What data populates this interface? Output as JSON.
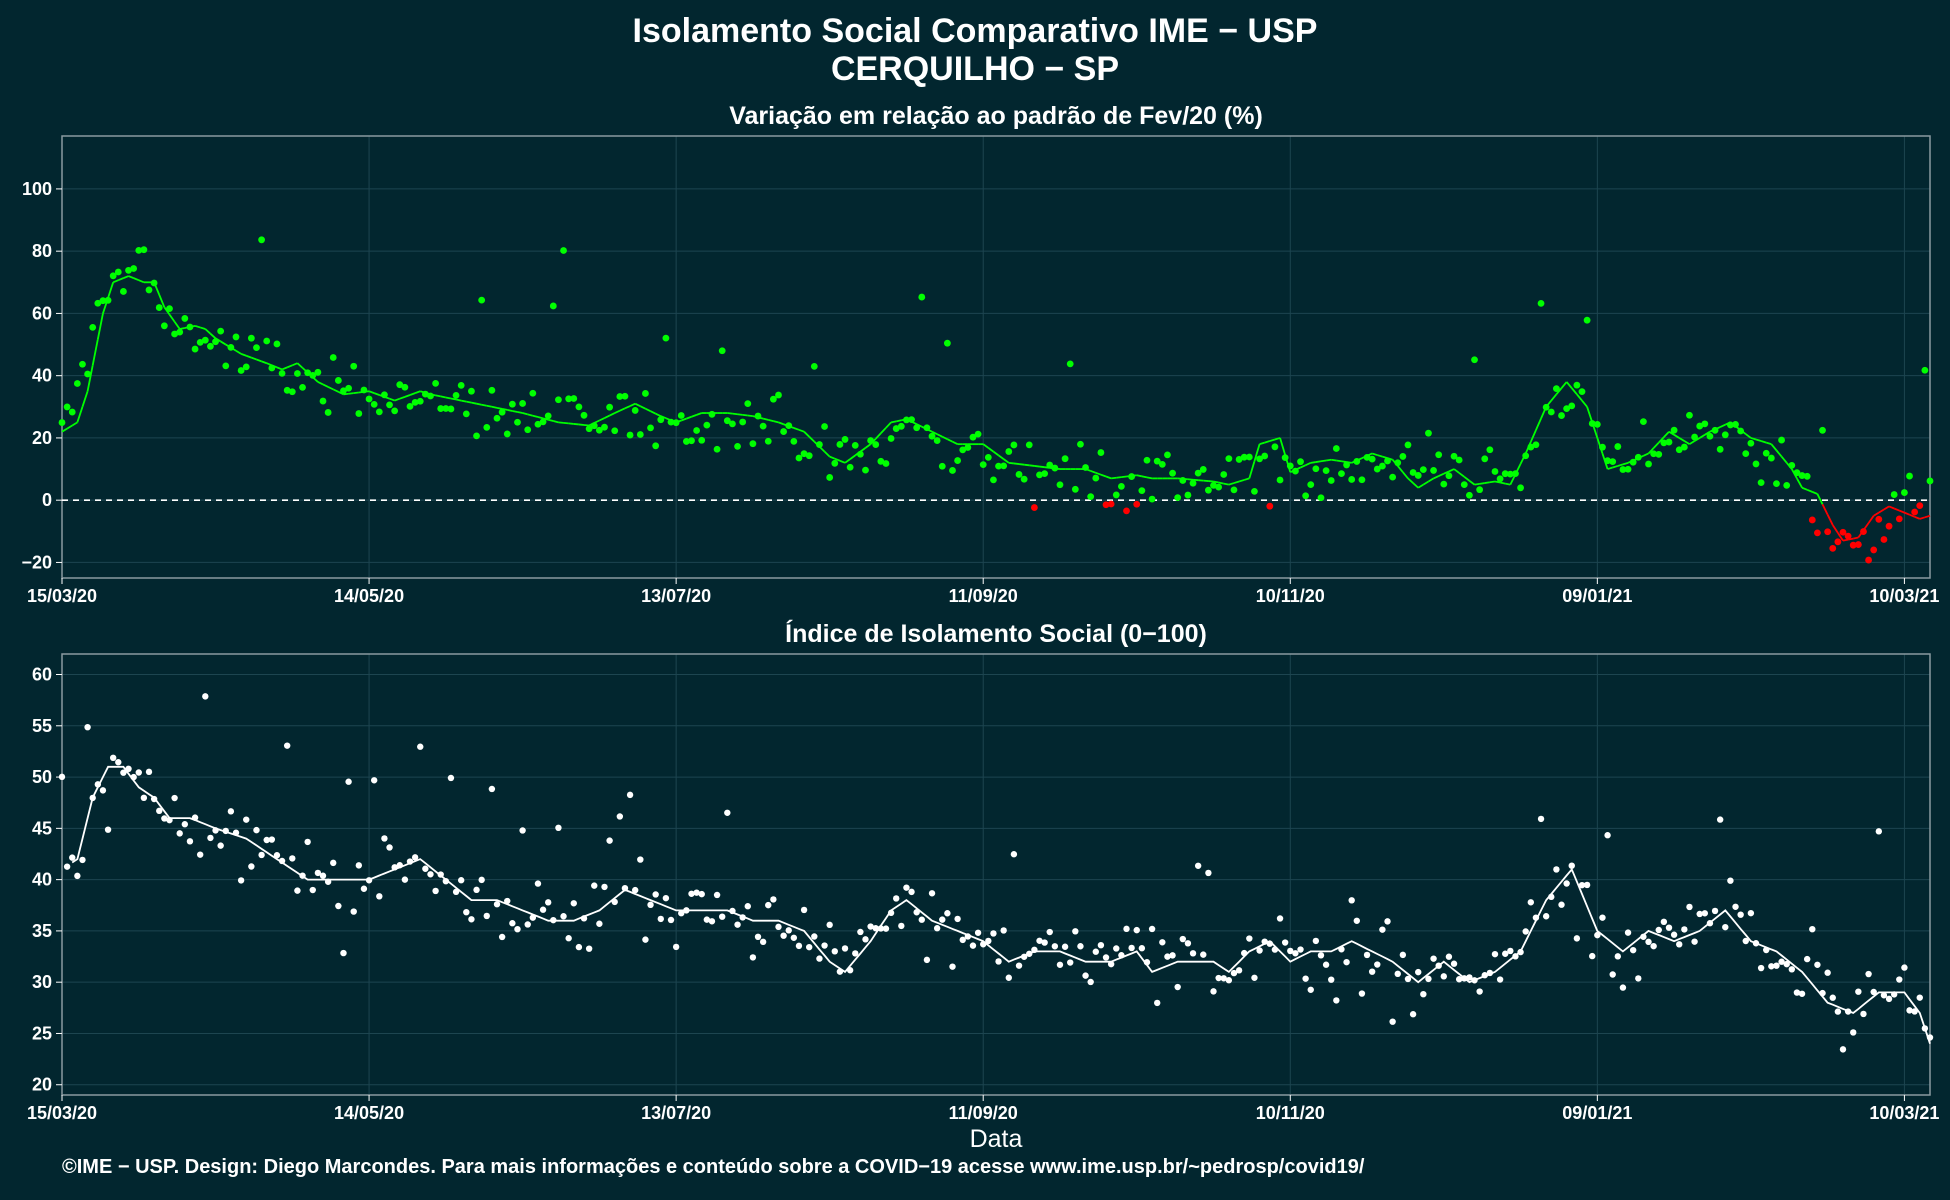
{
  "header": {
    "title": "Isolamento Social Comparativo IME − USP",
    "subtitle": "CERQUILHO − SP"
  },
  "footer": {
    "credit": "©IME − USP. Design: Diego Marcondes. Para mais informações e conteúdo sobre a COVID−19 acesse www.ime.usp.br/~pedrosp/covid19/"
  },
  "colors": {
    "background": "#02262f",
    "panel_border": "#8a9aa0",
    "grid": "#1d4550",
    "positive": "#00ff00",
    "negative": "#ff0000",
    "index": "#ffffff"
  },
  "chart_data": [
    {
      "type": "scatter",
      "title": "Variação em relação ao padrão de Fev/20 (%)",
      "xlabel": "",
      "ylabel": "",
      "start_date": "15/03/20",
      "x_tick_labels": [
        "15/03/20",
        "14/05/20",
        "13/07/20",
        "11/09/20",
        "10/11/20",
        "09/01/21",
        "10/03/21"
      ],
      "x_ticks_day": [
        0,
        60,
        120,
        180,
        240,
        300,
        360
      ],
      "x_range_day": [
        0,
        365
      ],
      "y_ticks": [
        -20,
        0,
        20,
        40,
        60,
        80,
        100
      ],
      "ylim": [
        -25,
        117
      ],
      "reference_line": 0,
      "anchors_point": [
        [
          0,
          20
        ],
        [
          5,
          45
        ],
        [
          10,
          80
        ],
        [
          12,
          68
        ],
        [
          16,
          78
        ],
        [
          20,
          58
        ],
        [
          25,
          55
        ],
        [
          30,
          50
        ],
        [
          35,
          45
        ],
        [
          45,
          40
        ],
        [
          55,
          36
        ],
        [
          60,
          36
        ],
        [
          70,
          33
        ],
        [
          80,
          30
        ],
        [
          90,
          27
        ],
        [
          100,
          24
        ],
        [
          110,
          27
        ],
        [
          120,
          25
        ],
        [
          130,
          27
        ],
        [
          138,
          25
        ],
        [
          145,
          20
        ],
        [
          150,
          12
        ],
        [
          158,
          15
        ],
        [
          165,
          25
        ],
        [
          172,
          17
        ],
        [
          180,
          15
        ],
        [
          185,
          12
        ],
        [
          190,
          12
        ],
        [
          200,
          8
        ],
        [
          210,
          7
        ],
        [
          220,
          6
        ],
        [
          230,
          7
        ],
        [
          240,
          8
        ],
        [
          250,
          12
        ],
        [
          260,
          13
        ],
        [
          265,
          9
        ],
        [
          270,
          9
        ],
        [
          280,
          8
        ],
        [
          285,
          8
        ],
        [
          290,
          30
        ],
        [
          295,
          38
        ],
        [
          300,
          17
        ],
        [
          305,
          12
        ],
        [
          310,
          18
        ],
        [
          315,
          20
        ],
        [
          320,
          25
        ],
        [
          325,
          22
        ],
        [
          330,
          20
        ],
        [
          340,
          4
        ],
        [
          345,
          -10
        ],
        [
          350,
          -17
        ],
        [
          355,
          -5
        ],
        [
          360,
          -4
        ],
        [
          365,
          2
        ]
      ],
      "anchors_trend": [
        [
          0,
          22
        ],
        [
          3,
          25
        ],
        [
          5,
          35
        ],
        [
          8,
          60
        ],
        [
          10,
          70
        ],
        [
          13,
          72
        ],
        [
          16,
          70
        ],
        [
          18,
          70
        ],
        [
          20,
          62
        ],
        [
          23,
          55
        ],
        [
          26,
          56
        ],
        [
          28,
          55
        ],
        [
          30,
          52
        ],
        [
          35,
          47
        ],
        [
          40,
          44
        ],
        [
          43,
          42
        ],
        [
          46,
          44
        ],
        [
          50,
          38
        ],
        [
          55,
          34
        ],
        [
          60,
          35
        ],
        [
          65,
          32
        ],
        [
          70,
          35
        ],
        [
          72,
          34
        ],
        [
          78,
          32
        ],
        [
          84,
          30
        ],
        [
          90,
          28
        ],
        [
          97,
          25
        ],
        [
          103,
          24
        ],
        [
          108,
          28
        ],
        [
          112,
          31
        ],
        [
          117,
          27
        ],
        [
          120,
          25
        ],
        [
          125,
          28
        ],
        [
          130,
          28
        ],
        [
          135,
          27
        ],
        [
          140,
          25
        ],
        [
          145,
          22
        ],
        [
          150,
          14
        ],
        [
          153,
          12
        ],
        [
          158,
          18
        ],
        [
          162,
          25
        ],
        [
          165,
          26
        ],
        [
          170,
          22
        ],
        [
          175,
          18
        ],
        [
          180,
          18
        ],
        [
          185,
          12
        ],
        [
          190,
          11
        ],
        [
          195,
          10
        ],
        [
          200,
          10
        ],
        [
          205,
          7
        ],
        [
          210,
          8
        ],
        [
          213,
          7
        ],
        [
          218,
          7
        ],
        [
          225,
          6
        ],
        [
          228,
          5
        ],
        [
          232,
          7
        ],
        [
          234,
          18
        ],
        [
          238,
          20
        ],
        [
          240,
          9
        ],
        [
          244,
          12
        ],
        [
          248,
          13
        ],
        [
          252,
          12
        ],
        [
          256,
          15
        ],
        [
          260,
          13
        ],
        [
          263,
          7
        ],
        [
          265,
          4
        ],
        [
          268,
          7
        ],
        [
          272,
          10
        ],
        [
          276,
          5
        ],
        [
          280,
          6
        ],
        [
          283,
          5
        ],
        [
          286,
          15
        ],
        [
          290,
          30
        ],
        [
          294,
          38
        ],
        [
          298,
          30
        ],
        [
          302,
          10
        ],
        [
          306,
          12
        ],
        [
          310,
          15
        ],
        [
          314,
          22
        ],
        [
          318,
          18
        ],
        [
          322,
          22
        ],
        [
          326,
          25
        ],
        [
          330,
          20
        ],
        [
          334,
          18
        ],
        [
          338,
          10
        ],
        [
          340,
          4
        ],
        [
          343,
          2
        ],
        [
          346,
          -8
        ],
        [
          348,
          -13
        ],
        [
          351,
          -12
        ],
        [
          354,
          -5
        ],
        [
          357,
          -2
        ],
        [
          360,
          -4
        ],
        [
          363,
          -6
        ],
        [
          365,
          -5
        ]
      ],
      "anchors_index": [
        [
          0,
          41
        ],
        [
          3,
          42
        ],
        [
          6,
          48
        ],
        [
          9,
          51
        ],
        [
          12,
          51
        ],
        [
          15,
          49
        ],
        [
          18,
          48
        ],
        [
          21,
          46
        ],
        [
          25,
          46
        ],
        [
          30,
          45
        ],
        [
          36,
          44
        ],
        [
          42,
          42
        ],
        [
          48,
          40
        ],
        [
          55,
          40
        ],
        [
          60,
          40
        ],
        [
          65,
          41
        ],
        [
          70,
          42
        ],
        [
          75,
          40
        ],
        [
          80,
          38
        ],
        [
          85,
          38
        ],
        [
          90,
          37
        ],
        [
          95,
          36
        ],
        [
          100,
          36
        ],
        [
          105,
          37
        ],
        [
          110,
          39
        ],
        [
          115,
          38
        ],
        [
          120,
          37
        ],
        [
          125,
          37
        ],
        [
          130,
          37
        ],
        [
          135,
          36
        ],
        [
          140,
          36
        ],
        [
          145,
          35
        ],
        [
          150,
          32
        ],
        [
          153,
          31
        ],
        [
          158,
          34
        ],
        [
          162,
          37
        ],
        [
          165,
          38
        ],
        [
          170,
          36
        ],
        [
          175,
          35
        ],
        [
          180,
          34
        ],
        [
          185,
          32
        ],
        [
          190,
          33
        ],
        [
          195,
          33
        ],
        [
          200,
          32
        ],
        [
          205,
          32
        ],
        [
          210,
          33
        ],
        [
          213,
          31
        ],
        [
          218,
          32
        ],
        [
          225,
          32
        ],
        [
          228,
          31
        ],
        [
          232,
          33
        ],
        [
          236,
          34
        ],
        [
          240,
          32
        ],
        [
          244,
          33
        ],
        [
          248,
          33
        ],
        [
          252,
          34
        ],
        [
          256,
          33
        ],
        [
          260,
          32
        ],
        [
          265,
          30
        ],
        [
          270,
          32
        ],
        [
          275,
          30
        ],
        [
          280,
          31
        ],
        [
          285,
          33
        ],
        [
          290,
          38
        ],
        [
          295,
          41
        ],
        [
          300,
          35
        ],
        [
          305,
          33
        ],
        [
          310,
          35
        ],
        [
          315,
          34
        ],
        [
          320,
          35
        ],
        [
          325,
          37
        ],
        [
          330,
          34
        ],
        [
          335,
          33
        ],
        [
          340,
          31
        ],
        [
          345,
          28
        ],
        [
          350,
          27
        ],
        [
          355,
          29
        ],
        [
          360,
          29
        ],
        [
          363,
          27
        ],
        [
          365,
          24
        ]
      ]
    },
    {
      "type": "scatter",
      "title": "Índice de Isolamento Social (0−100)",
      "xlabel": "Data",
      "ylabel": "",
      "x_tick_labels": [
        "15/03/20",
        "14/05/20",
        "13/07/20",
        "11/09/20",
        "10/11/20",
        "09/01/21",
        "10/03/21"
      ],
      "x_ticks_day": [
        0,
        60,
        120,
        180,
        240,
        300,
        360
      ],
      "x_range_day": [
        0,
        365
      ],
      "y_ticks": [
        20,
        25,
        30,
        35,
        40,
        45,
        50,
        55,
        60
      ],
      "ylim": [
        19,
        62
      ]
    }
  ]
}
